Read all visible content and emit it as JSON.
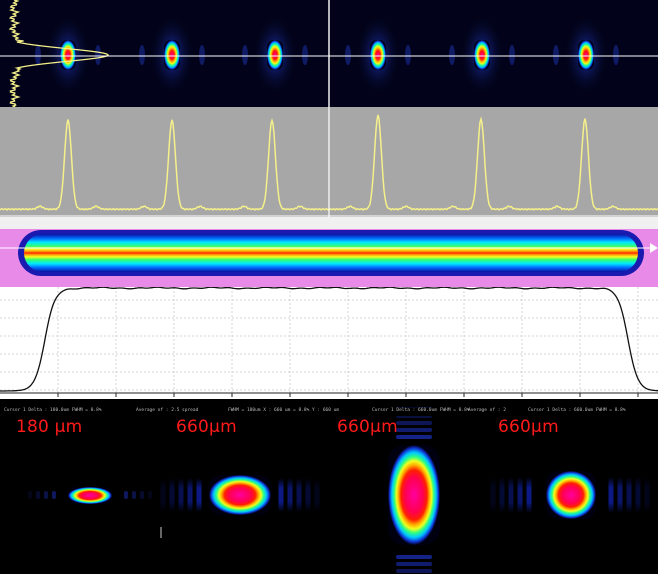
{
  "annotations": {
    "spot1": "180 µm",
    "spot2": "660µm",
    "spot3": "660µm",
    "spot4": "660µm"
  },
  "status_strip": [
    "Cursor 1 Delta : 180.0um FWHM = 8.8%",
    "Average of : 2.5 spread",
    "FWHM = 180um X : 660 um = 8.8% Y : 660 um",
    "Cursor 1 Delta : 660.0um FWHM = 8.8%",
    "Average of : 2",
    "Cursor 1 Delta : 660.0um FWHM = 8.8%"
  ],
  "colors": {
    "profile_trace": "#f5f08a",
    "cursor_line": "#ffffff",
    "annotation_text": "#ff1a1a",
    "false_color_scale": [
      "#00008b",
      "#0050ff",
      "#00e0ff",
      "#00ff70",
      "#ffff00",
      "#ff7000",
      "#ff0000",
      "#ff00a0"
    ]
  },
  "icons": {
    "cursor_arrow": "arrow-right-icon"
  }
}
